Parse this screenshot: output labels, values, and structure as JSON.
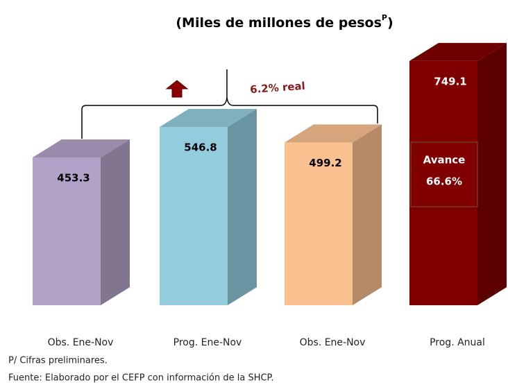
{
  "chart_data": {
    "type": "bar3d",
    "title_parts": [
      "(Miles de millones de pesos",
      "P",
      ")"
    ],
    "categories": [
      "Obs. Ene-Nov",
      "Prog. Ene-Nov",
      "Obs. Ene-Nov",
      "Prog. Anual"
    ],
    "values": [
      453.3,
      546.8,
      499.2,
      749.1
    ],
    "colors": [
      "#b3a2c7",
      "#93cddd",
      "#fac090",
      "#800000"
    ],
    "value_label_colors": [
      "#000000",
      "#000000",
      "#000000",
      "#ffffff"
    ],
    "annotations": {
      "growth": "6.2% real",
      "progress_label": "Avance",
      "progress_value": "66.6%"
    },
    "footnotes": [
      "P/ Cifras preliminares.",
      "Fuente: Elaborado por el CEFP con información de la SHCP."
    ]
  }
}
